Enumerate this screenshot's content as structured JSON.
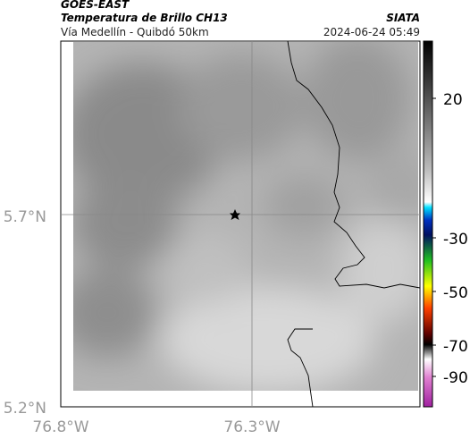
{
  "header": {
    "title": "GOES-EAST",
    "subtitle": "Temperatura de Brillo CH13",
    "source": "SIATA",
    "route": "Vía Medellín - Quibdó 50km",
    "timestamp": "2024-06-24 05:49"
  },
  "map": {
    "x_ticks": [
      "76.8°W",
      "76.3°W"
    ],
    "y_ticks": [
      "5.7°N",
      "5.2°N"
    ]
  },
  "colorbar": {
    "ticks": [
      20,
      -30,
      -50,
      -70,
      -90
    ]
  }
}
